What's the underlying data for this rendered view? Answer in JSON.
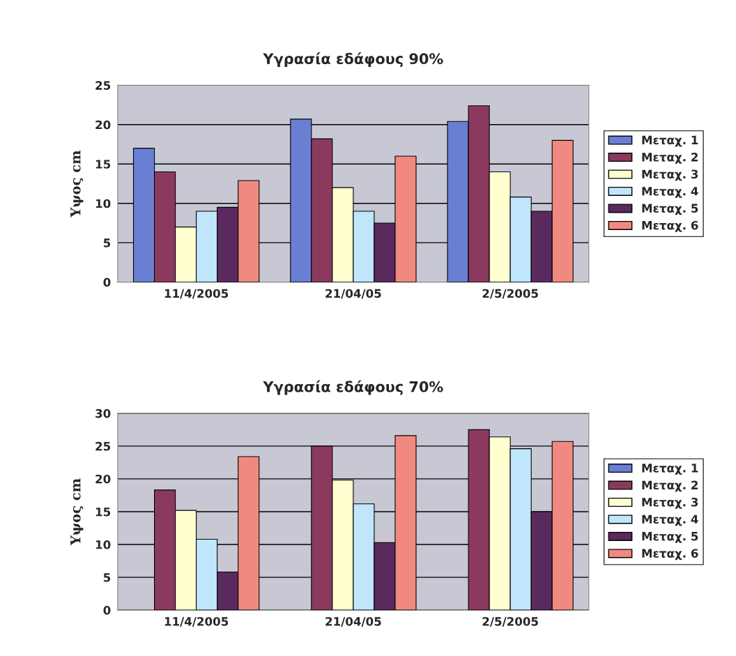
{
  "chart_data": [
    {
      "type": "bar",
      "title": "Υγρασία εδάφους 90%",
      "ylabel": "Υψος cm",
      "categories": [
        "11/4/2005",
        "21/04/05",
        "2/5/2005"
      ],
      "ylim": [
        0,
        25
      ],
      "yticks": [
        0,
        5,
        10,
        15,
        20,
        25
      ],
      "grid": "y",
      "legend": "right",
      "series": [
        {
          "name": "Μεταχ. 1",
          "color": "#6a7fd4",
          "values": [
            17,
            20.7,
            20.4
          ]
        },
        {
          "name": "Μεταχ. 2",
          "color": "#8b3a5e",
          "values": [
            14,
            18.2,
            22.4
          ]
        },
        {
          "name": "Μεταχ. 3",
          "color": "#ffffd0",
          "values": [
            7,
            12,
            14
          ]
        },
        {
          "name": "Μεταχ. 4",
          "color": "#bfe6fb",
          "values": [
            9,
            9,
            10.8
          ]
        },
        {
          "name": "Μεταχ. 5",
          "color": "#5a2a5e",
          "values": [
            9.5,
            7.5,
            9
          ]
        },
        {
          "name": "Μεταχ. 6",
          "color": "#f08a80",
          "values": [
            12.9,
            16,
            18
          ]
        }
      ]
    },
    {
      "type": "bar",
      "title": "Υγρασία εδάφους 70%",
      "ylabel": "Υψος cm",
      "categories": [
        "11/4/2005",
        "21/04/05",
        "2/5/2005"
      ],
      "ylim": [
        0,
        30
      ],
      "yticks": [
        0,
        5,
        10,
        15,
        20,
        25,
        30
      ],
      "grid": "y",
      "legend": "right",
      "series": [
        {
          "name": "Μεταχ. 1",
          "color": "#6a7fd4",
          "values": [
            null,
            null,
            null
          ]
        },
        {
          "name": "Μεταχ. 2",
          "color": "#8b3a5e",
          "values": [
            18.3,
            25,
            27.5
          ]
        },
        {
          "name": "Μεταχ. 3",
          "color": "#ffffd0",
          "values": [
            15.2,
            19.8,
            26.4
          ]
        },
        {
          "name": "Μεταχ. 4",
          "color": "#bfe6fb",
          "values": [
            10.8,
            16.2,
            24.6
          ]
        },
        {
          "name": "Μεταχ. 5",
          "color": "#5a2a5e",
          "values": [
            5.8,
            10.3,
            15
          ]
        },
        {
          "name": "Μεταχ. 6",
          "color": "#f08a80",
          "values": [
            23.4,
            26.6,
            25.7
          ]
        }
      ]
    }
  ]
}
